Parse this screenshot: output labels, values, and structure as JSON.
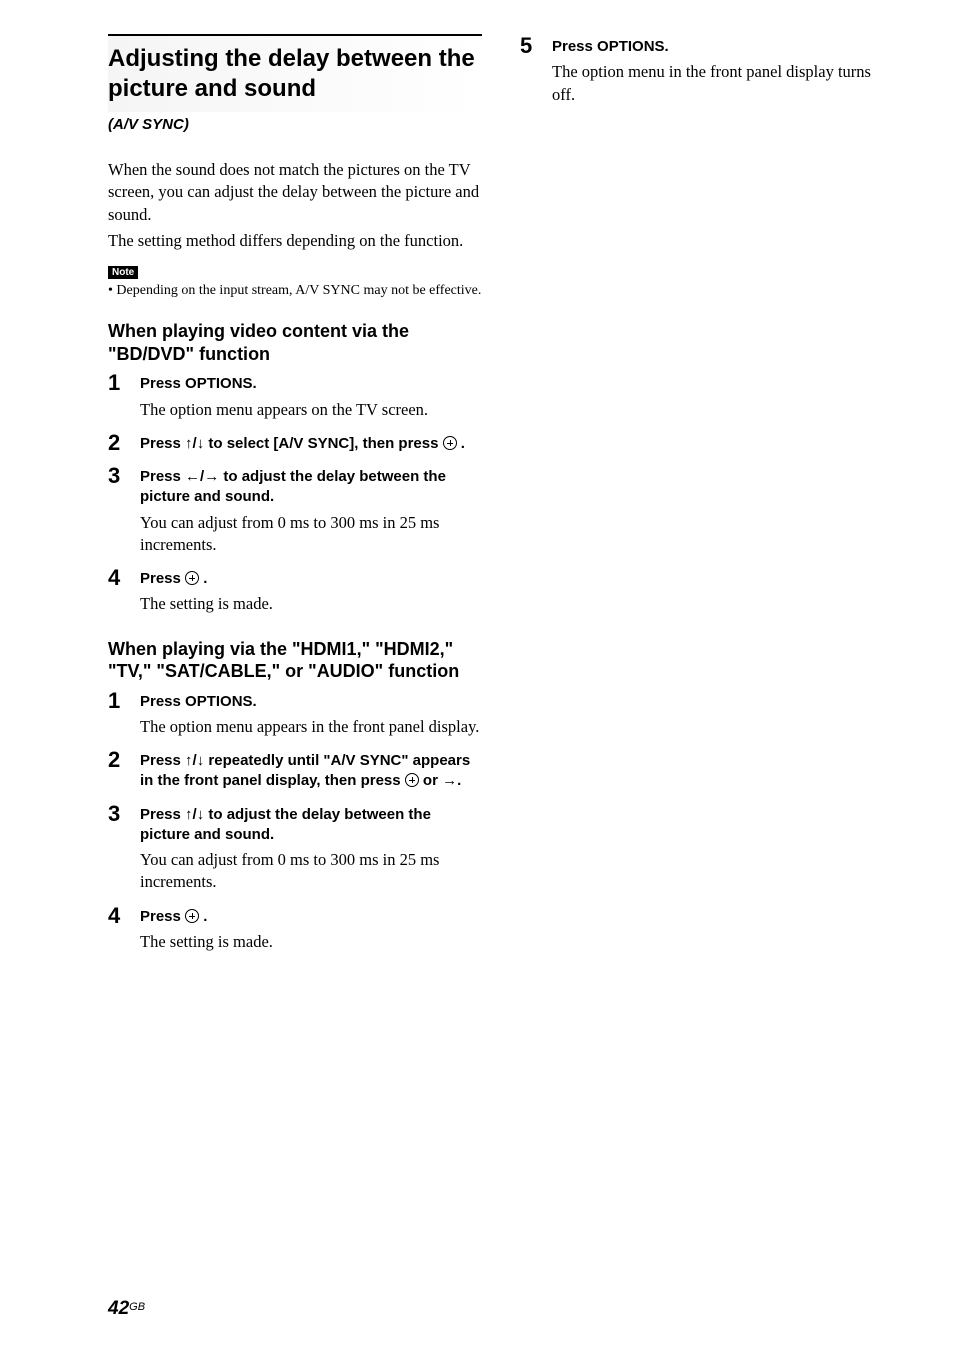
{
  "page": {
    "number": "42",
    "suffix": "GB"
  },
  "left_column": {
    "heading": "Adjusting the delay between the picture and sound",
    "sub_heading": "(A/V SYNC)",
    "intro_p1": "When the sound does not match the pictures on the TV screen, you can adjust the delay between the picture and sound.",
    "intro_p2": "The setting method differs depending on the function.",
    "note_label": "Note",
    "note_bullet": "• Depending on the input stream, A/V SYNC may not be effective.",
    "section1": {
      "heading": "When playing video content via the \"BD/DVD\" function",
      "steps": [
        {
          "num": "1",
          "instruction": "Press OPTIONS.",
          "description": "The option menu appears on the TV screen."
        },
        {
          "num": "2",
          "instruction_pre": "Press ",
          "arrows": "↑/↓",
          "instruction_mid": " to select [A/V SYNC], then press ",
          "has_circle": true,
          "instruction_post": " ."
        },
        {
          "num": "3",
          "instruction_pre": "Press ",
          "arrows": "←/→",
          "instruction_post": " to adjust the delay between the picture and sound.",
          "description": "You can adjust from 0 ms to 300 ms in 25 ms increments."
        },
        {
          "num": "4",
          "instruction_pre": "Press ",
          "has_circle": true,
          "instruction_post": " .",
          "description": "The setting is made."
        }
      ]
    },
    "section2": {
      "heading": "When playing via the \"HDMI1,\" \"HDMI2,\" \"TV,\" \"SAT/CABLE,\" or \"AUDIO\" function",
      "steps": [
        {
          "num": "1",
          "instruction": "Press OPTIONS.",
          "description": "The option menu appears in the front panel display."
        },
        {
          "num": "2",
          "instruction_pre": "Press ",
          "arrows": "↑/↓",
          "instruction_mid": " repeatedly until \"A/V SYNC\" appears in the front panel display, then press ",
          "has_circle": true,
          "instruction_post": " or →."
        },
        {
          "num": "3",
          "instruction_pre": "Press ",
          "arrows": "↑/↓",
          "instruction_post": " to adjust the delay between the picture and sound.",
          "description": "You can adjust from 0 ms to 300 ms in 25 ms increments."
        },
        {
          "num": "4",
          "instruction_pre": "Press ",
          "has_circle": true,
          "instruction_post": " .",
          "description": "The setting is made."
        }
      ]
    }
  },
  "right_column": {
    "step": {
      "num": "5",
      "instruction": "Press OPTIONS.",
      "description": "The option menu in the front panel display turns off."
    }
  }
}
